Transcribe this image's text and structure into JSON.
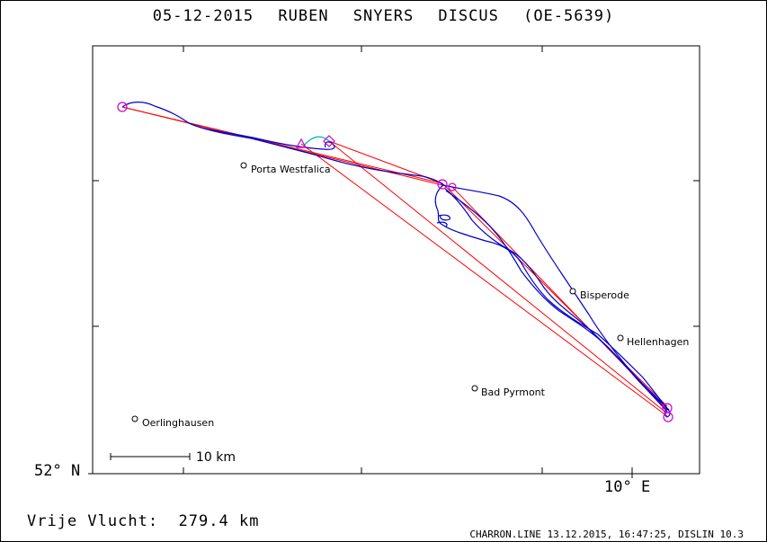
{
  "title": "05-12-2015    RUBEN SNYERS    DISCUS (OE-5639)",
  "axes": {
    "lat_label": "52° N",
    "lon_label": "10° E"
  },
  "flight_distance": {
    "label": "Vrije Vlucht:",
    "value": "279.4 km"
  },
  "footer": "CHARRON.LINE 13.12.2015, 16:47:25, DISLIN 10.3",
  "scale_bar": {
    "label": "10 km"
  },
  "towns": [
    {
      "name": "Porta Westfalica"
    },
    {
      "name": "Bisperode"
    },
    {
      "name": "Hellenhagen"
    },
    {
      "name": "Bad Pyrmont"
    },
    {
      "name": "Oerlinghausen"
    }
  ],
  "colors": {
    "track": "#0000cc",
    "task_lines": "#ff0000",
    "markers": "#cc00cc",
    "climb": "#00b0c0"
  }
}
